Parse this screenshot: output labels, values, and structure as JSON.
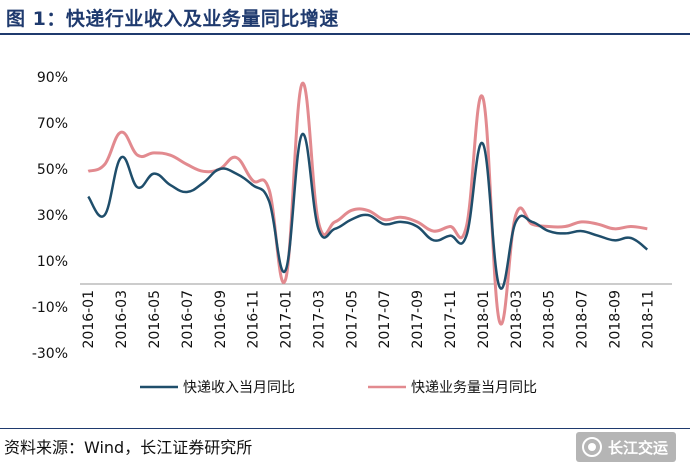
{
  "title": "图 1：快递行业收入及业务量同比增速",
  "source": "资料来源：Wind，长江证券研究所",
  "watermark": "长江交运",
  "colors": {
    "income": "#1f4e6b",
    "volume": "#e28a8f",
    "accent": "#1f3a6e"
  },
  "chart_data": {
    "type": "line",
    "y_ticks": [
      "90%",
      "70%",
      "50%",
      "30%",
      "10%",
      "-10%",
      "-30%"
    ],
    "ylim": [
      -30,
      90
    ],
    "x_tick_labels": [
      "2016-01",
      "2016-03",
      "2016-05",
      "2016-07",
      "2016-09",
      "2016-11",
      "2017-01",
      "2017-03",
      "2017-05",
      "2017-07",
      "2017-09",
      "2017-11",
      "2018-01",
      "2018-03",
      "2018-05",
      "2018-07",
      "2018-09",
      "2018-11"
    ],
    "x": [
      "2016-01",
      "2016-02",
      "2016-03",
      "2016-04",
      "2016-05",
      "2016-06",
      "2016-07",
      "2016-08",
      "2016-09",
      "2016-10",
      "2016-11",
      "2016-12",
      "2017-01",
      "2017-02",
      "2017-03",
      "2017-04",
      "2017-05",
      "2017-06",
      "2017-07",
      "2017-08",
      "2017-09",
      "2017-10",
      "2017-11",
      "2017-12",
      "2018-01",
      "2018-02",
      "2018-03",
      "2018-04",
      "2018-05",
      "2018-06",
      "2018-07",
      "2018-08",
      "2018-09",
      "2018-10",
      "2018-11",
      "2018-12"
    ],
    "series": [
      {
        "name": "快递收入当月同比",
        "values": [
          38,
          30,
          55,
          42,
          48,
          43,
          40,
          44,
          50,
          48,
          43,
          36,
          6,
          65,
          24,
          24,
          28,
          30,
          26,
          27,
          25,
          19,
          21,
          21,
          61,
          -1,
          27,
          27,
          23,
          22,
          23,
          21,
          19,
          20,
          15,
          null
        ]
      },
      {
        "name": "快递业务量当月同比",
        "values": [
          49,
          52,
          66,
          56,
          57,
          56,
          52,
          49,
          50,
          55,
          45,
          41,
          2,
          87,
          27,
          27,
          32,
          32,
          28,
          29,
          27,
          23,
          25,
          25,
          81,
          -16,
          30,
          26,
          25,
          25,
          27,
          26,
          24,
          25,
          24,
          null
        ]
      }
    ]
  }
}
